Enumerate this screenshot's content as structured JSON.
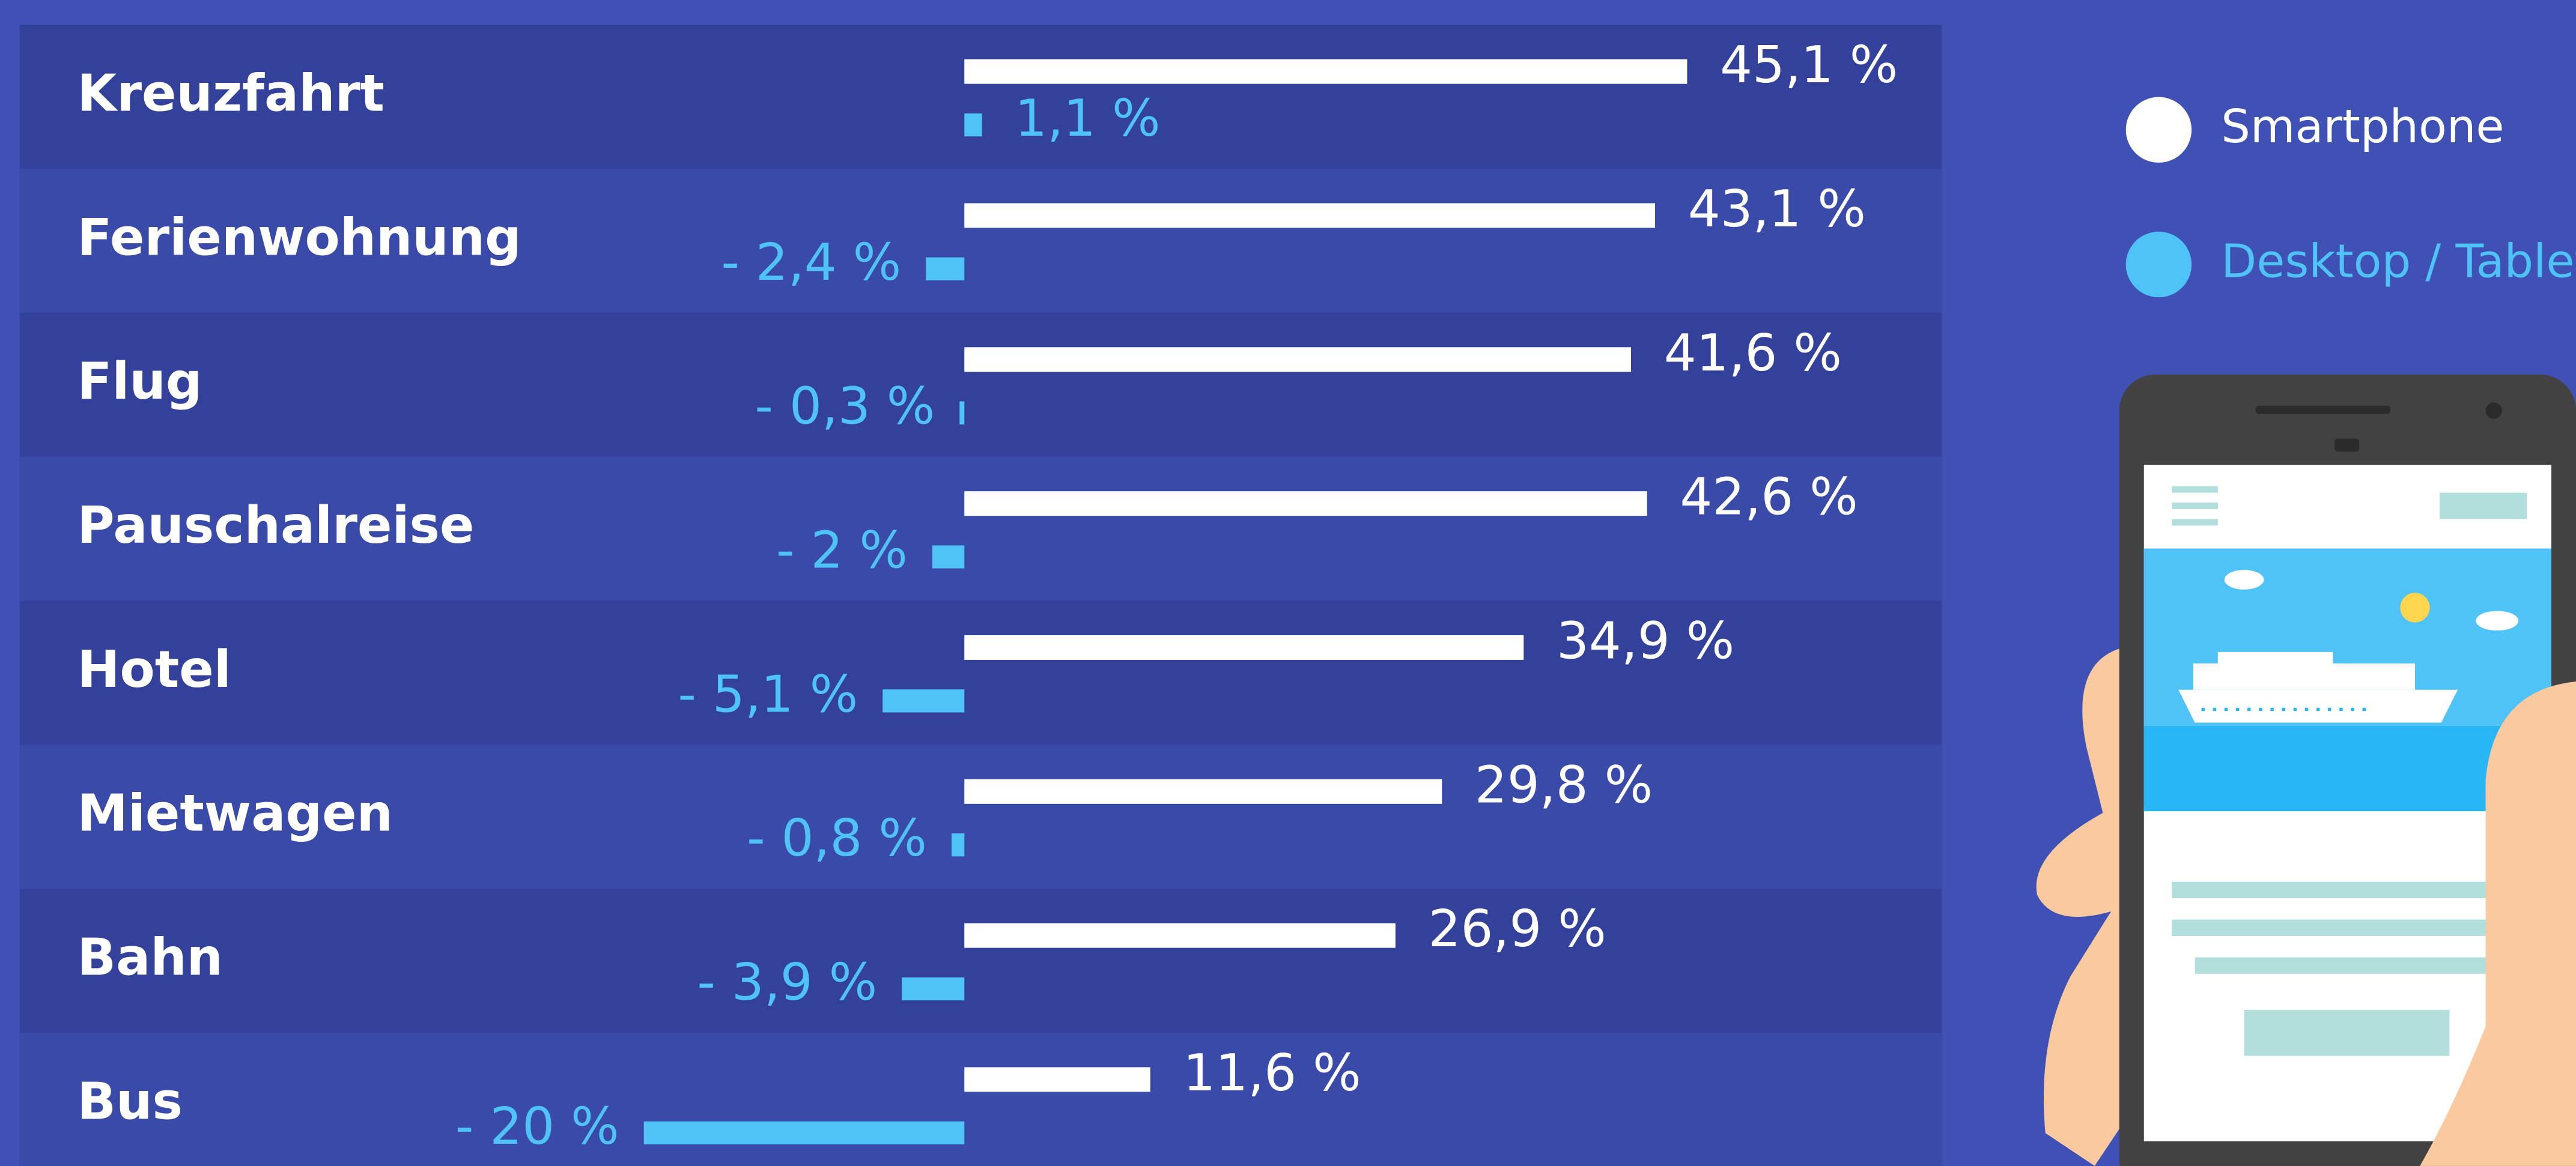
{
  "chart_data": {
    "type": "bar",
    "orientation": "horizontal",
    "categories": [
      "Kreuzfahrt",
      "Ferienwohnung",
      "Flug",
      "Pauschalreise",
      "Hotel",
      "Mietwagen",
      "Bahn",
      "Bus"
    ],
    "series": [
      {
        "name": "Smartphone",
        "color": "#ffffff",
        "values": [
          45.1,
          43.1,
          41.6,
          42.6,
          34.9,
          29.8,
          26.9,
          11.6
        ],
        "value_labels": [
          "45,1 %",
          "43,1 %",
          "41,6 %",
          "42,6 %",
          "34,9 %",
          "29,8 %",
          "26,9 %",
          "11,6 %"
        ]
      },
      {
        "name": "Desktop / Tablet",
        "color": "#4fc3f7",
        "values": [
          1.1,
          -2.4,
          -0.3,
          -2,
          -5.1,
          -0.8,
          -3.9,
          -20
        ],
        "value_labels": [
          "1,1 %",
          "- 2,4 %",
          "- 0,3 %",
          "- 2 %",
          "- 5,1 %",
          "- 0,8 %",
          "- 3,9 %",
          "- 20 %"
        ]
      }
    ]
  }
}
